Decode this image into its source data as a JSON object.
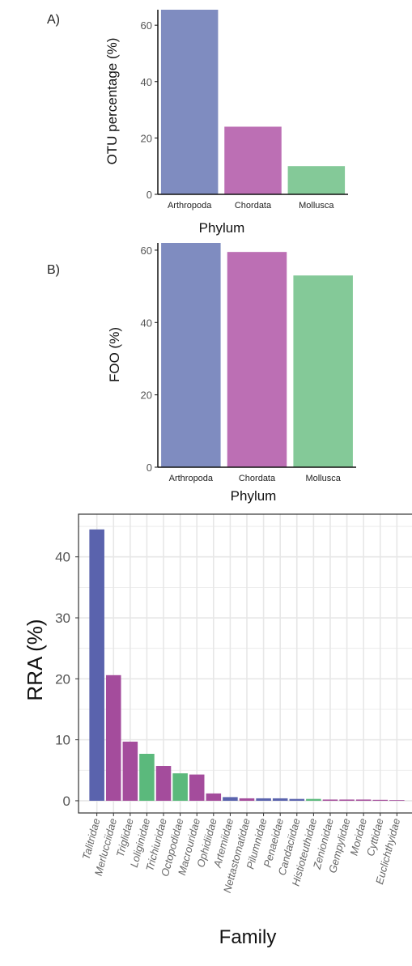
{
  "panel_labels": {
    "a": "A)",
    "b": "B)"
  },
  "colors": {
    "Arthropoda_light": "#7f8cc0",
    "Chordata_light": "#bc6fb4",
    "Mollusca_light": "#84c998",
    "Arthropoda_dark": "#5a63ad",
    "Chordata_dark": "#a44c9c",
    "Mollusca_dark": "#5bb97c",
    "grid": "#e7e7e7",
    "axis": "#111111"
  },
  "chart_data": [
    {
      "type": "bar",
      "panel": "A)",
      "categories": [
        "Arthropoda",
        "Chordata",
        "Mollusca"
      ],
      "values": [
        65.5,
        24,
        10
      ],
      "xlabel": "Phylum",
      "ylabel": "OTU percentage (%)",
      "yticks": [
        0,
        20,
        40,
        60
      ],
      "ylim": [
        0,
        65.5
      ],
      "grid": false
    },
    {
      "type": "bar",
      "panel": "B)",
      "categories": [
        "Arthropoda",
        "Chordata",
        "Mollusca"
      ],
      "values": [
        62,
        59.5,
        53
      ],
      "xlabel": "Phylum",
      "ylabel": "FOO (%)",
      "yticks": [
        0,
        20,
        40,
        60
      ],
      "ylim": [
        0,
        62
      ],
      "grid": false
    },
    {
      "type": "bar",
      "categories": [
        "Talitridae",
        "Merlucciidae",
        "Triglidae",
        "Loliginidae",
        "Trichiuridae",
        "Octopodidae",
        "Macrouridae",
        "Ophidiidae",
        "Artemiidae",
        "Nettastomatidae",
        "Pilumnidae",
        "Penaeidae",
        "Candaciidae",
        "Histioteuthidae",
        "Zenionidae",
        "Gempylidae",
        "Moridae",
        "Cyttidae",
        "Euclichthyidae"
      ],
      "values": [
        44.5,
        20.6,
        9.7,
        7.7,
        5.7,
        4.5,
        4.3,
        1.2,
        0.6,
        0.4,
        0.4,
        0.4,
        0.3,
        0.3,
        0.2,
        0.2,
        0.2,
        0.15,
        0.1
      ],
      "phylum": [
        "Arthropoda",
        "Chordata",
        "Chordata",
        "Mollusca",
        "Chordata",
        "Mollusca",
        "Chordata",
        "Chordata",
        "Arthropoda",
        "Chordata",
        "Arthropoda",
        "Arthropoda",
        "Arthropoda",
        "Mollusca",
        "Chordata",
        "Chordata",
        "Chordata",
        "Chordata",
        "Chordata"
      ],
      "xlabel": "Family",
      "ylabel": "RRA (%)",
      "yticks": [
        0,
        10,
        20,
        30,
        40
      ],
      "ylim": [
        -2,
        47
      ],
      "grid": true
    }
  ]
}
